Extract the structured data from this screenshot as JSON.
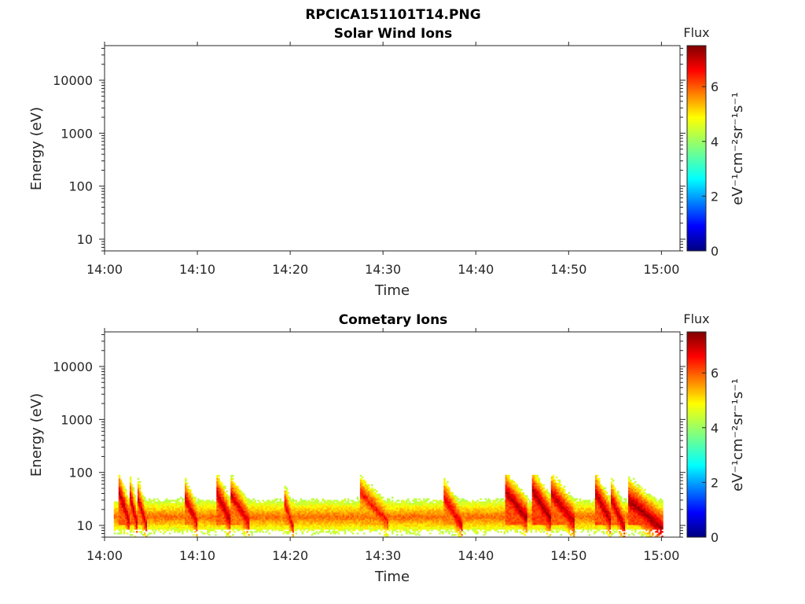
{
  "figure": {
    "title": "RPCICA151101T14.PNG"
  },
  "chart_data": [
    {
      "type": "heatmap",
      "title": "Solar Wind Ions",
      "xlabel": "Time",
      "ylabel": "Energy (eV)",
      "x_range": [
        "14:00",
        "15:02"
      ],
      "x_ticks": [
        "14:00",
        "14:10",
        "14:20",
        "14:30",
        "14:40",
        "14:50",
        "15:00"
      ],
      "y_scale": "log",
      "y_range": [
        6,
        45000
      ],
      "y_ticks": [
        "10",
        "100",
        "1000",
        "10000"
      ],
      "y_tick_values": [
        10,
        100,
        1000,
        10000
      ],
      "colorbar": {
        "title": "Flux",
        "label": "eV⁻¹cm⁻²sr⁻¹s⁻¹",
        "range": [
          0,
          7.5
        ],
        "ticks": [
          "0",
          "2",
          "4",
          "6"
        ],
        "tick_values": [
          0,
          2,
          4,
          6
        ],
        "colormap": "jet"
      },
      "bursts": []
    },
    {
      "type": "heatmap",
      "title": "Cometary Ions",
      "xlabel": "Time",
      "ylabel": "Energy (eV)",
      "x_range": [
        "14:00",
        "15:02"
      ],
      "x_ticks": [
        "14:00",
        "14:10",
        "14:20",
        "14:30",
        "14:40",
        "14:50",
        "15:00"
      ],
      "y_scale": "log",
      "y_range": [
        6,
        45000
      ],
      "y_ticks": [
        "10",
        "100",
        "1000",
        "10000"
      ],
      "y_tick_values": [
        10,
        100,
        1000,
        10000
      ],
      "colorbar": {
        "title": "Flux",
        "label": "eV⁻¹cm⁻²sr⁻¹s⁻¹",
        "range": [
          0,
          7.5
        ],
        "ticks": [
          "0",
          "2",
          "4",
          "6"
        ],
        "tick_values": [
          0,
          2,
          4,
          6
        ],
        "colormap": "jet"
      },
      "data_time_range": [
        "14:01",
        "15:00"
      ],
      "background_band": {
        "min_energy": 8,
        "max_energy": 25,
        "level": 5.2
      },
      "bursts": [
        {
          "start": "14:01.5",
          "end": "14:02.6",
          "peak_energy": 40,
          "level": 7.1
        },
        {
          "start": "14:02.6",
          "end": "14:03.4",
          "peak_energy": 38,
          "level": 7.0
        },
        {
          "start": "14:03.4",
          "end": "14:04.4",
          "peak_energy": 36,
          "level": 6.9
        },
        {
          "start": "14:08.5",
          "end": "14:10.0",
          "peak_energy": 35,
          "level": 6.9
        },
        {
          "start": "14:12.0",
          "end": "14:13.5",
          "peak_energy": 40,
          "level": 7.1
        },
        {
          "start": "14:13.5",
          "end": "14:15.5",
          "peak_energy": 38,
          "level": 6.9
        },
        {
          "start": "14:19.2",
          "end": "14:20.3",
          "peak_energy": 30,
          "level": 6.7
        },
        {
          "start": "14:27.5",
          "end": "14:30.5",
          "peak_energy": 40,
          "level": 6.5
        },
        {
          "start": "14:36.5",
          "end": "14:38.5",
          "peak_energy": 33,
          "level": 6.8
        },
        {
          "start": "14:43.0",
          "end": "14:45.5",
          "peak_energy": 45,
          "level": 7.2
        },
        {
          "start": "14:46.0",
          "end": "14:48.0",
          "peak_energy": 45,
          "level": 7.3
        },
        {
          "start": "14:48.0",
          "end": "14:50.5",
          "peak_energy": 40,
          "level": 7.1
        },
        {
          "start": "14:52.8",
          "end": "14:54.5",
          "peak_energy": 40,
          "level": 7.2
        },
        {
          "start": "14:54.5",
          "end": "14:56.0",
          "peak_energy": 30,
          "level": 7.0
        },
        {
          "start": "14:56.3",
          "end": "15:00.0",
          "peak_energy": 30,
          "level": 7.3
        }
      ]
    }
  ]
}
